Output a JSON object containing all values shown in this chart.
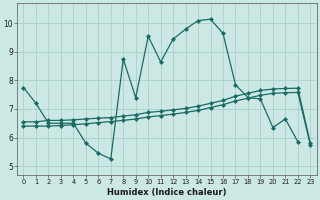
{
  "xlabel": "Humidex (Indice chaleur)",
  "bg_color": "#cce8e4",
  "grid_color": "#aacfcb",
  "line_color": "#1a6b63",
  "xlim": [
    -0.5,
    23.5
  ],
  "ylim": [
    4.7,
    10.7
  ],
  "yticks": [
    5,
    6,
    7,
    8,
    9,
    10
  ],
  "xticks": [
    0,
    1,
    2,
    3,
    4,
    5,
    6,
    7,
    8,
    9,
    10,
    11,
    12,
    13,
    14,
    15,
    16,
    17,
    18,
    19,
    20,
    21,
    22,
    23
  ],
  "series1_x": [
    0,
    1,
    2,
    3,
    4,
    5,
    6,
    7,
    8,
    9,
    10,
    11,
    12,
    13,
    14,
    15,
    16,
    17,
    18,
    19,
    20,
    21,
    22
  ],
  "series1_y": [
    7.75,
    7.2,
    6.5,
    6.5,
    6.5,
    5.8,
    5.45,
    5.25,
    8.75,
    7.4,
    9.55,
    8.65,
    9.45,
    9.8,
    10.1,
    10.15,
    9.65,
    7.85,
    7.4,
    7.35,
    6.35,
    6.65,
    5.85
  ],
  "series2_x": [
    0,
    1,
    2,
    3,
    4,
    5,
    6,
    7,
    8,
    9,
    10,
    11,
    12,
    13,
    14,
    15,
    16,
    17,
    18,
    19,
    20,
    21,
    22,
    23
  ],
  "series2_y": [
    6.55,
    6.55,
    6.6,
    6.6,
    6.62,
    6.65,
    6.68,
    6.7,
    6.75,
    6.8,
    6.88,
    6.92,
    6.97,
    7.02,
    7.1,
    7.2,
    7.3,
    7.45,
    7.55,
    7.65,
    7.7,
    7.72,
    7.73,
    5.8
  ],
  "series3_x": [
    0,
    1,
    2,
    3,
    4,
    5,
    6,
    7,
    8,
    9,
    10,
    11,
    12,
    13,
    14,
    15,
    16,
    17,
    18,
    19,
    20,
    21,
    22,
    23
  ],
  "series3_y": [
    6.4,
    6.4,
    6.4,
    6.42,
    6.45,
    6.48,
    6.52,
    6.56,
    6.6,
    6.65,
    6.72,
    6.77,
    6.82,
    6.88,
    6.95,
    7.05,
    7.15,
    7.28,
    7.38,
    7.48,
    7.55,
    7.57,
    7.58,
    5.75
  ]
}
